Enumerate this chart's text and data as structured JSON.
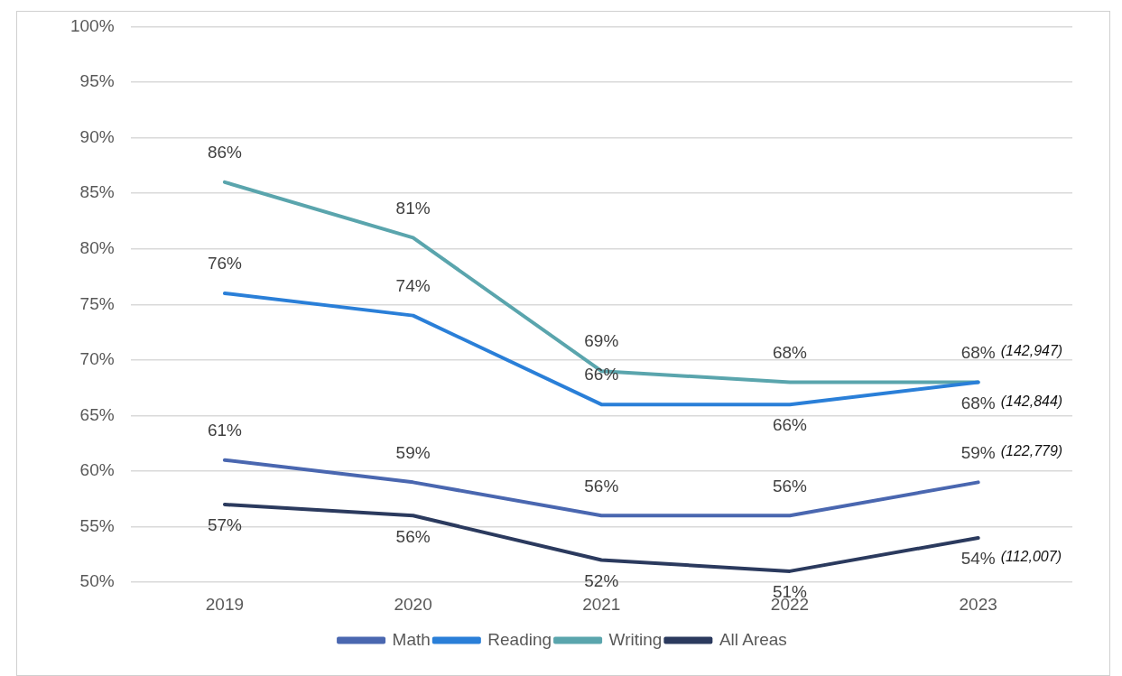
{
  "chart_data": {
    "type": "line",
    "categories": [
      "2019",
      "2020",
      "2021",
      "2022",
      "2023"
    ],
    "series": [
      {
        "name": "Math",
        "color": "#4a67b0",
        "values": [
          61,
          59,
          56,
          56,
          59
        ],
        "value_labels": [
          "61%",
          "59%",
          "56%",
          "56%",
          "59%"
        ]
      },
      {
        "name": "Reading",
        "color": "#2a7fd8",
        "values": [
          76,
          74,
          66,
          66,
          68
        ],
        "value_labels": [
          "76%",
          "74%",
          "66%",
          "66%",
          "68%"
        ]
      },
      {
        "name": "Writing",
        "color": "#5aa5ad",
        "values": [
          86,
          81,
          69,
          68,
          68
        ],
        "value_labels": [
          "86%",
          "81%",
          "69%",
          "68%",
          "68%"
        ]
      },
      {
        "name": "All Areas",
        "color": "#2b3a5e",
        "values": [
          57,
          56,
          52,
          51,
          54
        ],
        "value_labels": [
          "57%",
          "56%",
          "52%",
          "51%",
          "54%"
        ]
      }
    ],
    "ylim": [
      50,
      100
    ],
    "yticks": [
      {
        "value": 50,
        "label": "50%"
      },
      {
        "value": 55,
        "label": "55%"
      },
      {
        "value": 60,
        "label": "60%"
      },
      {
        "value": 65,
        "label": "65%"
      },
      {
        "value": 70,
        "label": "70%"
      },
      {
        "value": 75,
        "label": "75%"
      },
      {
        "value": 80,
        "label": "80%"
      },
      {
        "value": 85,
        "label": "85%"
      },
      {
        "value": 90,
        "label": "90%"
      },
      {
        "value": 95,
        "label": "95%"
      },
      {
        "value": 100,
        "label": "100%"
      }
    ],
    "grid": "y",
    "legend": "bottom",
    "marker": "none",
    "line_style": "solid",
    "annotations": [
      {
        "text": "(142,947)",
        "x": "2023",
        "y": 68
      },
      {
        "text": "(142,844)",
        "x": "2023",
        "y": 68
      },
      {
        "text": "(122,779)",
        "x": "2023",
        "y": 59
      },
      {
        "text": "(112,007)",
        "x": "2023",
        "y": 54
      }
    ]
  }
}
